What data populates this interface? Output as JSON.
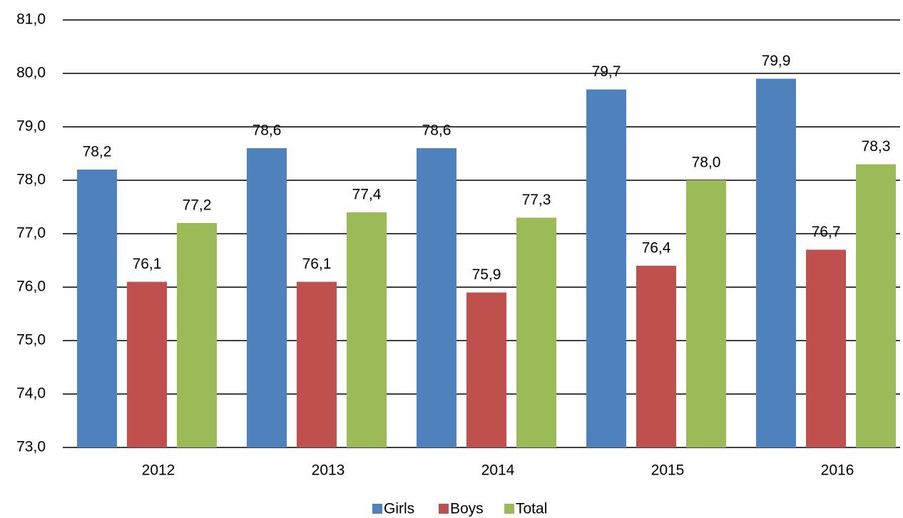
{
  "chart_data": {
    "type": "bar",
    "categories": [
      "2012",
      "2013",
      "2014",
      "2015",
      "2016"
    ],
    "series": [
      {
        "name": "Girls",
        "color": "#4f81bd",
        "values": [
          78.2,
          78.6,
          78.6,
          79.7,
          79.9
        ],
        "value_labels": [
          "78,2",
          "78,6",
          "78,6",
          "79,7",
          "79,9"
        ]
      },
      {
        "name": "Boys",
        "color": "#c0504d",
        "values": [
          76.1,
          76.1,
          75.9,
          76.4,
          76.7
        ],
        "value_labels": [
          "76,1",
          "76,1",
          "75,9",
          "76,4",
          "76,7"
        ]
      },
      {
        "name": "Total",
        "color": "#9bbb59",
        "values": [
          77.2,
          77.4,
          77.3,
          78.0,
          78.3
        ],
        "value_labels": [
          "77,2",
          "77,4",
          "77,3",
          "78,0",
          "78,3"
        ]
      }
    ],
    "ylim": [
      73,
      81
    ],
    "yticks": [
      {
        "value": 73,
        "label": "73,0"
      },
      {
        "value": 74,
        "label": "74,0"
      },
      {
        "value": 75,
        "label": "75,0"
      },
      {
        "value": 76,
        "label": "76,0"
      },
      {
        "value": 77,
        "label": "77,0"
      },
      {
        "value": 78,
        "label": "78,0"
      },
      {
        "value": 79,
        "label": "79,0"
      },
      {
        "value": 80,
        "label": "80,0"
      },
      {
        "value": 81,
        "label": "81,0"
      }
    ],
    "grid": true,
    "legend": "bottom"
  }
}
